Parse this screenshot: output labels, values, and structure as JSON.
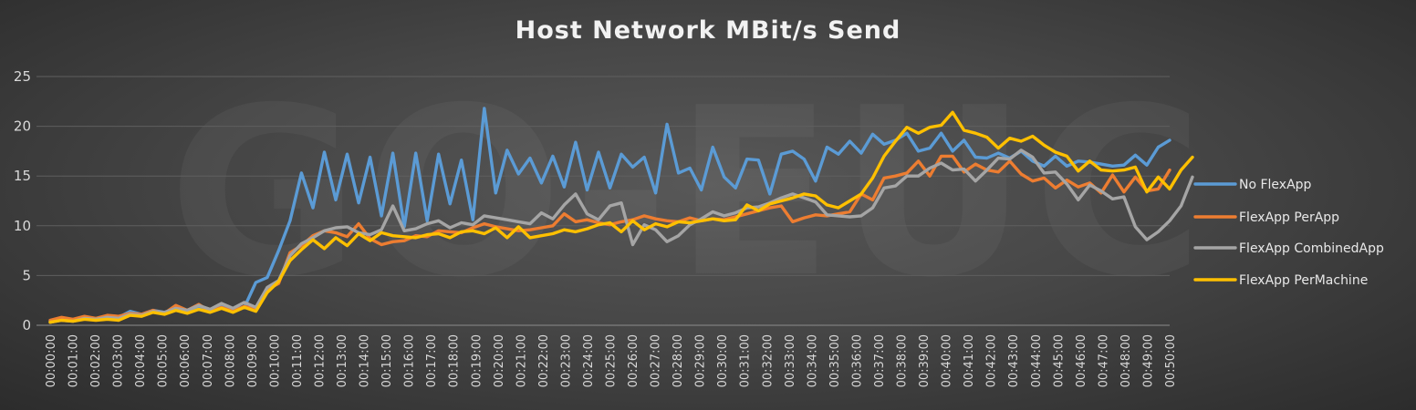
{
  "watermark": "GO-EUC",
  "chart_data": {
    "type": "line",
    "title": "Host Network MBit/s Send",
    "xlabel": "",
    "ylabel": "",
    "ylim": [
      0,
      25
    ],
    "yticks": [
      0,
      5,
      10,
      15,
      20,
      25
    ],
    "grid": true,
    "legend_position": "right",
    "x_tick_labels": [
      "00:00:00",
      "00:01:00",
      "00:02:00",
      "00:03:00",
      "00:04:00",
      "00:05:00",
      "00:06:00",
      "00:07:00",
      "00:08:00",
      "00:09:00",
      "00:10:00",
      "00:11:00",
      "00:12:00",
      "00:13:00",
      "00:14:00",
      "00:15:00",
      "00:16:00",
      "00:17:00",
      "00:18:00",
      "00:19:00",
      "00:20:00",
      "00:21:00",
      "00:22:00",
      "00:23:00",
      "00:24:00",
      "00:25:00",
      "00:26:00",
      "00:27:00",
      "00:28:00",
      "00:29:00",
      "00:30:00",
      "00:31:00",
      "00:32:00",
      "00:33:00",
      "00:34:00",
      "00:35:00",
      "00:36:00",
      "00:37:00",
      "00:38:00",
      "00:39:00",
      "00:40:00",
      "00:41:00",
      "00:42:00",
      "00:43:00",
      "00:44:00",
      "00:45:00",
      "00:46:00",
      "00:47:00",
      "00:48:00",
      "00:49:00",
      "00:50:00"
    ],
    "series": [
      {
        "name": "No FlexApp",
        "color": "#5b9bd5",
        "values": [
          0.4,
          0.6,
          0.5,
          0.8,
          0.6,
          0.9,
          0.8,
          1.4,
          1.1,
          1.5,
          1.3,
          1.6,
          1.4,
          1.8,
          1.5,
          1.9,
          1.6,
          1.8,
          4.3,
          4.8,
          7.5,
          10.5,
          15.3,
          11.8,
          17.4,
          12.6,
          17.2,
          12.3,
          16.9,
          11.0,
          17.3,
          9.9,
          17.3,
          10.5,
          17.2,
          12.2,
          16.6,
          10.6,
          21.8,
          13.3,
          17.6,
          15.2,
          16.8,
          14.3,
          17.0,
          13.9,
          18.4,
          13.6,
          17.4,
          13.8,
          17.2,
          15.9,
          16.9,
          13.3,
          20.2,
          15.3,
          15.8,
          13.6,
          17.9,
          14.9,
          13.8,
          16.7,
          16.6,
          13.2,
          17.2,
          17.5,
          16.7,
          14.5,
          17.9,
          17.2,
          18.5,
          17.3,
          19.2,
          18.2,
          18.6,
          19.3,
          17.5,
          17.8,
          19.3,
          17.5,
          18.6,
          16.9,
          16.8,
          17.3,
          16.8,
          17.5,
          16.5,
          16.0,
          17.0,
          16.0,
          16.5,
          16.4,
          16.2,
          16.0,
          16.1,
          17.1,
          16.1,
          17.9,
          18.6
        ]
      },
      {
        "name": "FlexApp PerApp",
        "color": "#ed7d31",
        "values": [
          0.5,
          0.8,
          0.6,
          0.9,
          0.7,
          1.0,
          0.9,
          1.2,
          1.1,
          1.5,
          1.2,
          2.0,
          1.5,
          2.1,
          1.4,
          1.8,
          1.4,
          1.9,
          1.6,
          3.6,
          4.2,
          7.3,
          8.0,
          9.0,
          9.5,
          9.3,
          8.9,
          10.2,
          8.7,
          8.1,
          8.4,
          8.5,
          9.0,
          8.9,
          9.5,
          9.4,
          9.3,
          9.8,
          10.2,
          9.9,
          9.7,
          9.5,
          9.6,
          9.8,
          10.0,
          11.2,
          10.4,
          10.6,
          10.3,
          10.1,
          10.4,
          10.6,
          11.0,
          10.7,
          10.5,
          10.4,
          10.8,
          10.5,
          10.7,
          10.6,
          10.9,
          11.2,
          11.5,
          11.8,
          12.0,
          10.4,
          10.8,
          11.1,
          11.0,
          11.2,
          11.4,
          13.2,
          12.6,
          14.8,
          15.0,
          15.3,
          16.5,
          15.0,
          17.0,
          17.0,
          15.4,
          16.2,
          15.6,
          15.4,
          16.5,
          15.2,
          14.5,
          14.8,
          13.8,
          14.6,
          13.9,
          14.3,
          13.3,
          15.1,
          13.4,
          14.9,
          13.5,
          13.7,
          15.6
        ]
      },
      {
        "name": "FlexApp CombinedApp",
        "color": "#a5a5a5",
        "values": [
          0.3,
          0.5,
          0.4,
          0.7,
          0.6,
          0.8,
          0.7,
          1.1,
          1.0,
          1.4,
          1.3,
          1.7,
          1.5,
          2.0,
          1.6,
          2.2,
          1.7,
          2.3,
          1.8,
          3.8,
          4.5,
          7.0,
          8.2,
          8.8,
          9.5,
          9.8,
          9.9,
          9.3,
          9.1,
          9.6,
          12.0,
          9.5,
          9.7,
          10.2,
          10.5,
          9.8,
          10.3,
          10.1,
          11.0,
          10.8,
          10.6,
          10.4,
          10.2,
          11.3,
          10.7,
          12.1,
          13.2,
          11.2,
          10.6,
          12.0,
          12.3,
          8.1,
          10.1,
          9.6,
          8.4,
          9.0,
          10.1,
          10.7,
          11.4,
          11.0,
          11.3,
          11.8,
          11.9,
          12.3,
          12.8,
          13.2,
          12.8,
          12.4,
          11.1,
          11.0,
          10.9,
          11.0,
          11.8,
          13.8,
          14.0,
          15.0,
          15.0,
          15.8,
          16.3,
          15.6,
          15.7,
          14.5,
          15.6,
          16.8,
          16.7,
          17.6,
          16.9,
          15.3,
          15.4,
          14.2,
          12.6,
          14.1,
          13.5,
          12.7,
          12.9,
          9.9,
          8.6,
          9.4,
          10.5,
          12.0,
          14.9
        ]
      },
      {
        "name": "FlexApp PerMachine",
        "color": "#ffc000",
        "values": [
          0.3,
          0.5,
          0.4,
          0.6,
          0.5,
          0.6,
          0.5,
          1.0,
          0.9,
          1.3,
          1.1,
          1.5,
          1.2,
          1.6,
          1.3,
          1.7,
          1.3,
          1.8,
          1.4,
          3.3,
          4.4,
          6.5,
          7.6,
          8.6,
          7.7,
          8.8,
          8.0,
          9.2,
          8.5,
          9.3,
          9.0,
          8.9,
          8.8,
          9.1,
          9.2,
          8.8,
          9.4,
          9.5,
          9.2,
          9.8,
          8.8,
          9.9,
          8.8,
          9.0,
          9.2,
          9.6,
          9.4,
          9.7,
          10.1,
          10.3,
          9.4,
          10.5,
          9.6,
          10.2,
          9.9,
          10.4,
          10.3,
          10.5,
          10.7,
          10.5,
          10.6,
          12.1,
          11.5,
          12.2,
          12.5,
          12.8,
          13.2,
          13.0,
          12.1,
          11.8,
          12.5,
          13.2,
          14.8,
          17.0,
          18.5,
          19.9,
          19.3,
          19.9,
          20.1,
          21.4,
          19.6,
          19.3,
          18.9,
          17.8,
          18.8,
          18.5,
          19.0,
          18.1,
          17.4,
          17.0,
          15.5,
          16.5,
          15.6,
          15.5,
          15.6,
          15.9,
          13.4,
          14.9,
          13.7,
          15.6,
          16.9
        ]
      }
    ]
  }
}
